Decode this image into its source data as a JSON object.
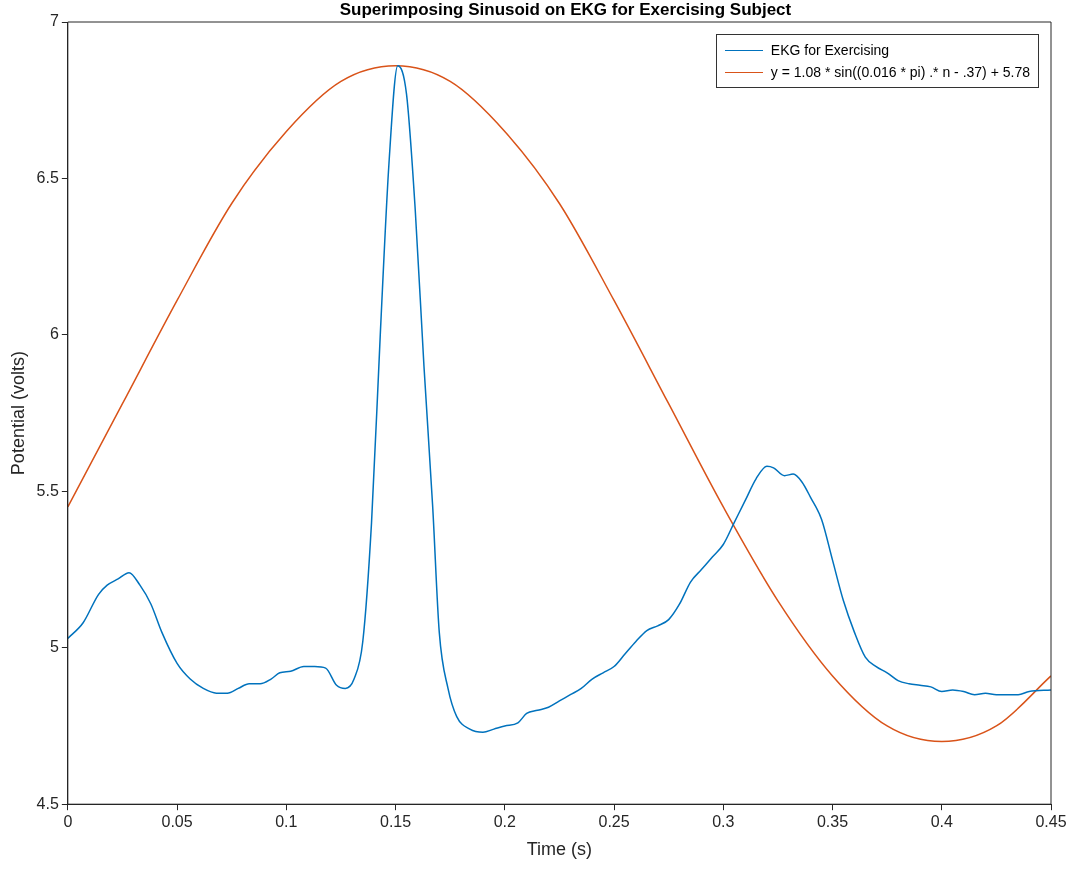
{
  "chart_data": {
    "type": "line",
    "title": "Superimposing Sinusoid on EKG for Exercising Subject",
    "xlabel": "Time (s)",
    "ylabel": "Potential (volts)",
    "xlim": [
      0,
      0.45
    ],
    "xticks": [
      0,
      0.05,
      0.1,
      0.15,
      0.2,
      0.25,
      0.3,
      0.35,
      0.4,
      0.45
    ],
    "ylim": [
      4.5,
      7
    ],
    "yticks": [
      4.5,
      5,
      5.5,
      6,
      6.5,
      7
    ],
    "grid": false,
    "legend": "top right",
    "marker": "none",
    "line_style": "solid",
    "series": [
      {
        "name": "EKG for Exercising",
        "color": "#0072bd",
        "x": [
          0,
          0.007,
          0.014,
          0.018,
          0.023,
          0.028,
          0.033,
          0.038,
          0.043,
          0.05,
          0.056,
          0.062,
          0.068,
          0.073,
          0.078,
          0.083,
          0.088,
          0.093,
          0.097,
          0.102,
          0.108,
          0.113,
          0.118,
          0.123,
          0.127,
          0.131,
          0.135,
          0.139,
          0.143,
          0.147,
          0.151,
          0.155,
          0.159,
          0.163,
          0.167,
          0.17,
          0.174,
          0.178,
          0.184,
          0.19,
          0.195,
          0.2,
          0.206,
          0.21,
          0.215,
          0.22,
          0.225,
          0.23,
          0.235,
          0.24,
          0.245,
          0.25,
          0.255,
          0.26,
          0.265,
          0.27,
          0.275,
          0.28,
          0.285,
          0.29,
          0.295,
          0.3,
          0.305,
          0.31,
          0.315,
          0.32,
          0.323,
          0.328,
          0.332,
          0.336,
          0.34,
          0.345,
          0.35,
          0.355,
          0.36,
          0.365,
          0.37,
          0.375,
          0.38,
          0.385,
          0.39,
          0.395,
          0.4,
          0.405,
          0.41,
          0.415,
          0.42,
          0.425,
          0.43,
          0.435,
          0.44,
          0.45
        ],
        "values": [
          5.03,
          5.08,
          5.17,
          5.2,
          5.22,
          5.24,
          5.2,
          5.14,
          5.05,
          4.95,
          4.9,
          4.87,
          4.855,
          4.855,
          4.87,
          4.885,
          4.885,
          4.9,
          4.92,
          4.925,
          4.94,
          4.94,
          4.935,
          4.88,
          4.87,
          4.9,
          5.02,
          5.4,
          6.0,
          6.55,
          6.86,
          6.77,
          6.4,
          5.9,
          5.45,
          5.05,
          4.87,
          4.78,
          4.74,
          4.73,
          4.74,
          4.75,
          4.76,
          4.79,
          4.8,
          4.81,
          4.83,
          4.85,
          4.87,
          4.9,
          4.92,
          4.94,
          4.98,
          5.02,
          5.055,
          5.07,
          5.09,
          5.14,
          5.21,
          5.25,
          5.29,
          5.33,
          5.4,
          5.47,
          5.54,
          5.58,
          5.575,
          5.55,
          5.555,
          5.53,
          5.48,
          5.41,
          5.28,
          5.15,
          5.05,
          4.97,
          4.94,
          4.92,
          4.895,
          4.885,
          4.88,
          4.875,
          4.86,
          4.865,
          4.86,
          4.85,
          4.855,
          4.85,
          4.85,
          4.85,
          4.86,
          4.865
        ]
      },
      {
        "name": "y = 1.08 * sin((0.016 * pi) .* n - .37) + 5.78",
        "color": "#d95319",
        "x": [
          0,
          0.025,
          0.05,
          0.075,
          0.1,
          0.125,
          0.15,
          0.175,
          0.2,
          0.225,
          0.25,
          0.275,
          0.3,
          0.325,
          0.35,
          0.375,
          0.4,
          0.425,
          0.45
        ],
        "values": [
          5.45,
          5.78,
          6.11,
          6.42,
          6.65,
          6.81,
          6.86,
          6.81,
          6.65,
          6.42,
          6.11,
          5.78,
          5.45,
          5.15,
          4.91,
          4.75,
          4.7,
          4.75,
          4.91
        ]
      }
    ]
  }
}
